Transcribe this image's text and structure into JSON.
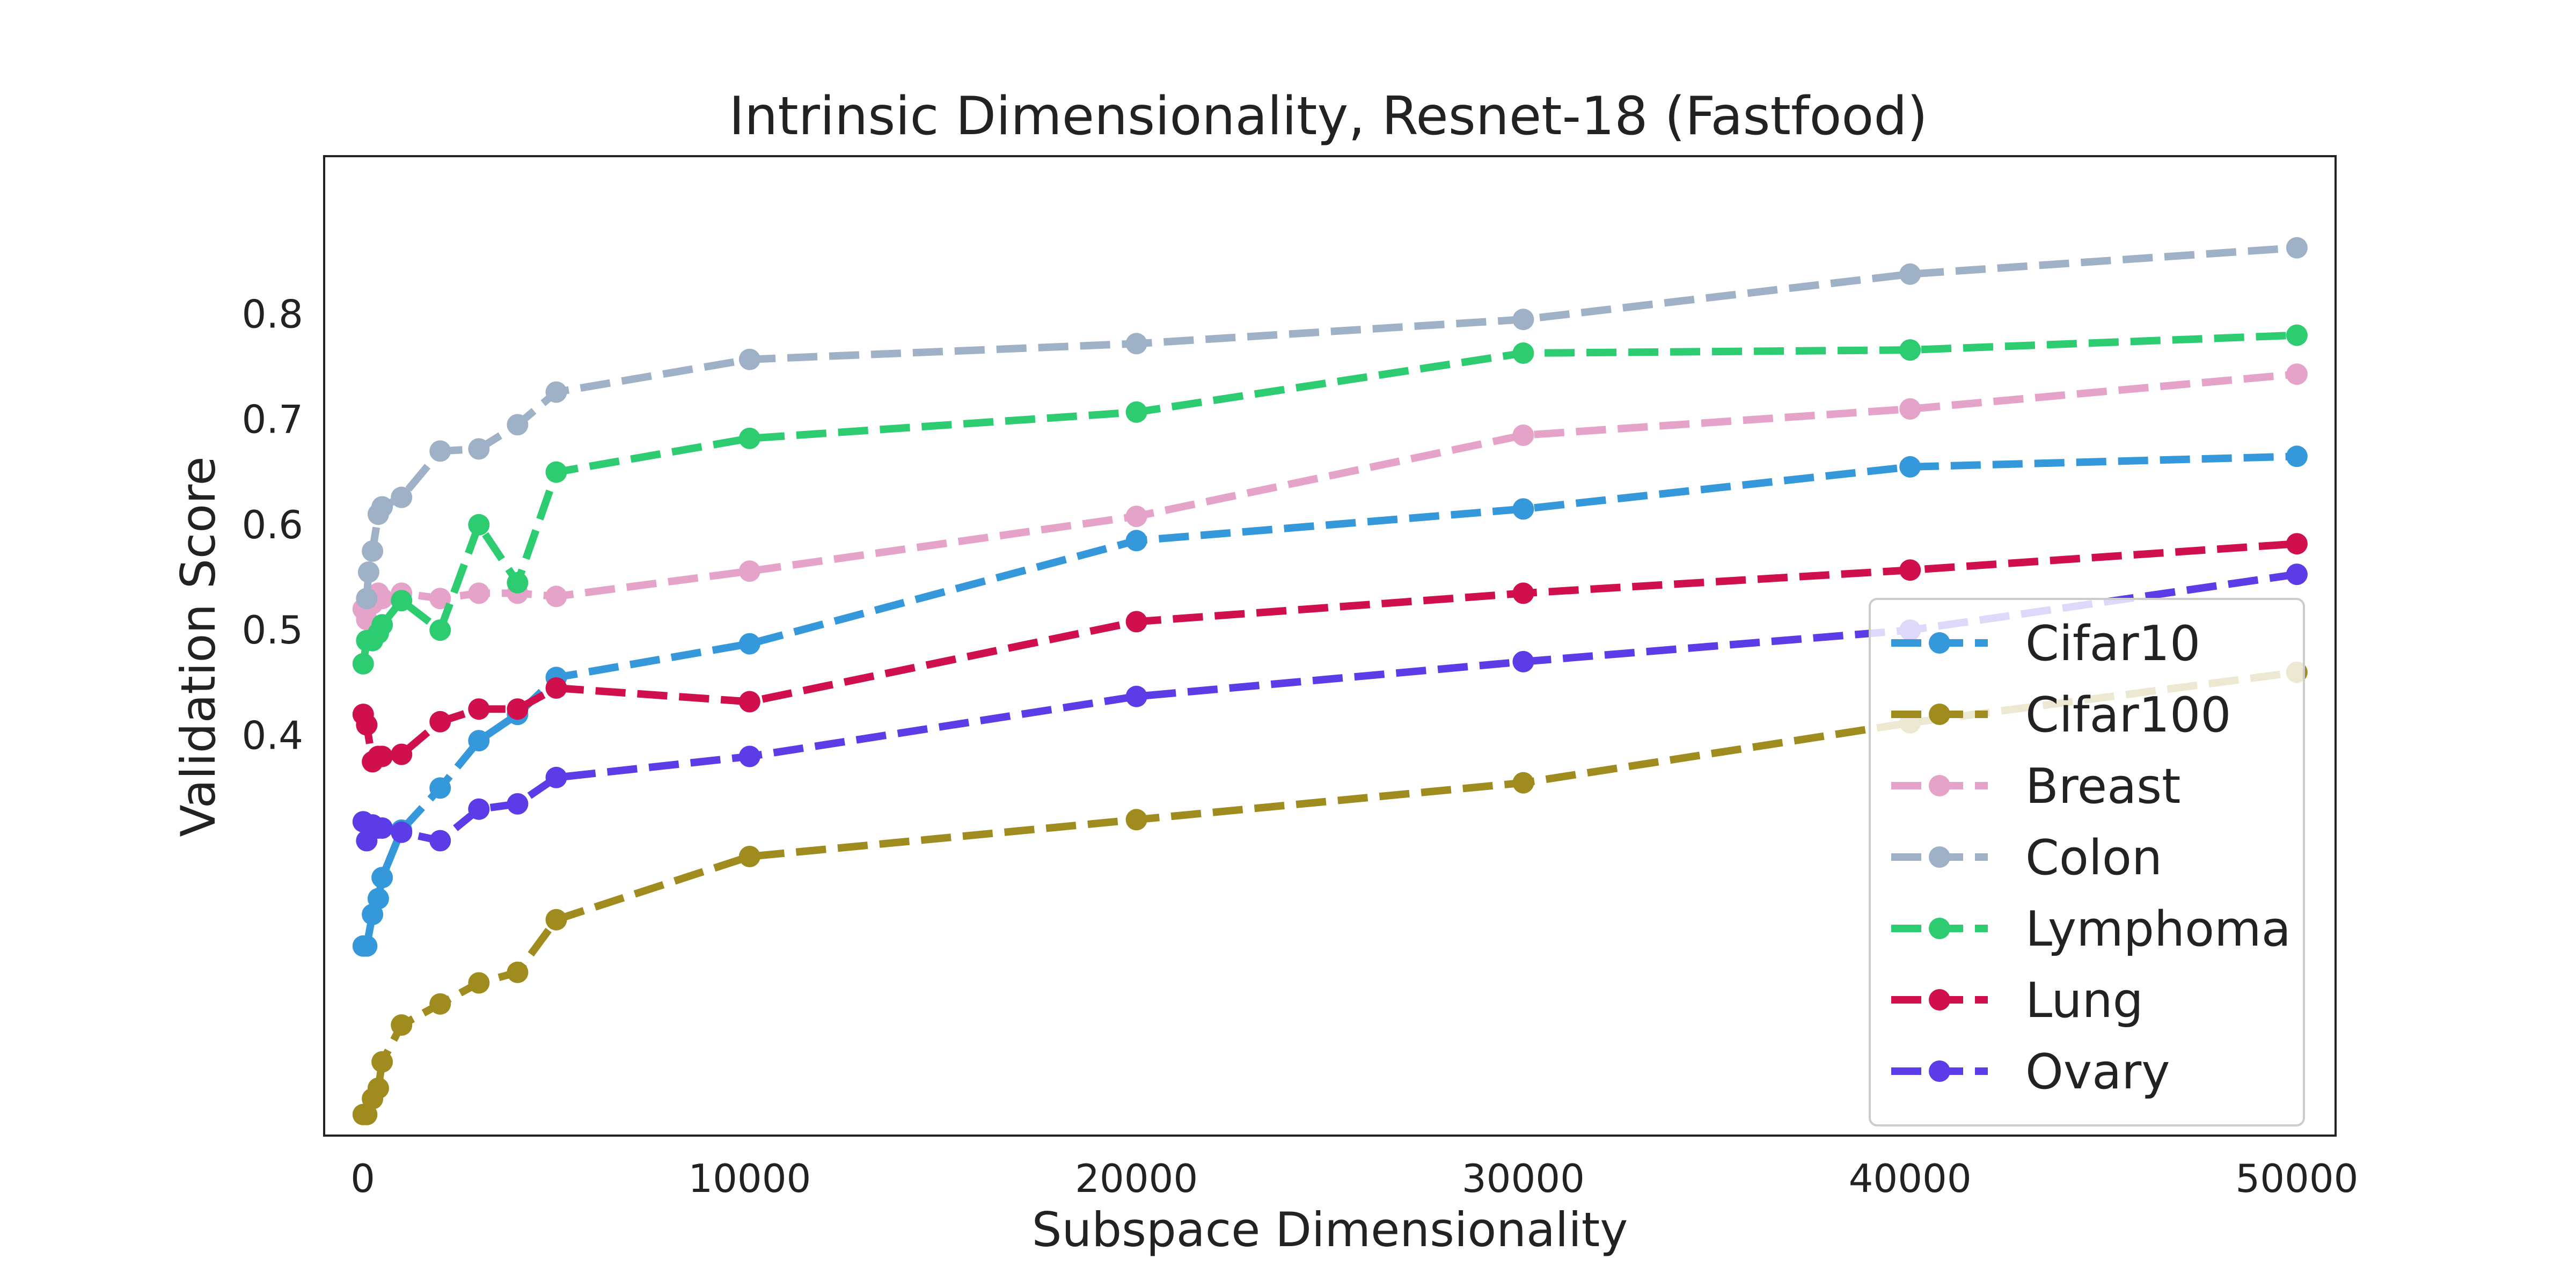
{
  "chart_data": {
    "type": "line",
    "title": "Intrinsic Dimensionality, Resnet-18 (Fastfood)",
    "xlabel": "Subspace Dimensionality",
    "ylabel": "Validation Score",
    "xlim": [
      -1000,
      51000
    ],
    "ylim": [
      0.02,
      0.95
    ],
    "xticks": [
      0,
      10000,
      20000,
      30000,
      40000,
      50000
    ],
    "yticks": [
      0.4,
      0.5,
      0.6,
      0.7,
      0.8
    ],
    "grid": false,
    "legend_position": "lower-right",
    "line_style": "dashed",
    "series": [
      {
        "name": "Cifar10",
        "color": "#3498db",
        "points": [
          [
            10,
            0.2
          ],
          [
            100,
            0.2
          ],
          [
            250,
            0.23
          ],
          [
            400,
            0.245
          ],
          [
            500,
            0.265
          ],
          [
            1000,
            0.31
          ],
          [
            2000,
            0.35
          ],
          [
            3000,
            0.395
          ],
          [
            4000,
            0.42
          ],
          [
            5000,
            0.455
          ],
          [
            10000,
            0.487
          ],
          [
            20000,
            0.585
          ],
          [
            30000,
            0.615
          ],
          [
            40000,
            0.655
          ],
          [
            50000,
            0.665
          ]
        ]
      },
      {
        "name": "Cifar100",
        "color": "#a08b1f",
        "points": [
          [
            10,
            0.04
          ],
          [
            100,
            0.04
          ],
          [
            250,
            0.055
          ],
          [
            400,
            0.065
          ],
          [
            500,
            0.09
          ],
          [
            1000,
            0.125
          ],
          [
            2000,
            0.145
          ],
          [
            3000,
            0.165
          ],
          [
            4000,
            0.175
          ],
          [
            5000,
            0.225
          ],
          [
            10000,
            0.285
          ],
          [
            20000,
            0.32
          ],
          [
            30000,
            0.355
          ],
          [
            40000,
            0.412
          ],
          [
            50000,
            0.46
          ]
        ]
      },
      {
        "name": "Breast",
        "color": "#e5a3c9",
        "points": [
          [
            10,
            0.52
          ],
          [
            100,
            0.51
          ],
          [
            250,
            0.525
          ],
          [
            400,
            0.535
          ],
          [
            500,
            0.53
          ],
          [
            1000,
            0.535
          ],
          [
            2000,
            0.53
          ],
          [
            3000,
            0.535
          ],
          [
            4000,
            0.535
          ],
          [
            5000,
            0.532
          ],
          [
            10000,
            0.556
          ],
          [
            20000,
            0.608
          ],
          [
            30000,
            0.685
          ],
          [
            40000,
            0.71
          ],
          [
            50000,
            0.743
          ]
        ]
      },
      {
        "name": "Colon",
        "color": "#9fb1c6",
        "points": [
          [
            100,
            0.53
          ],
          [
            150,
            0.555
          ],
          [
            250,
            0.575
          ],
          [
            400,
            0.61
          ],
          [
            500,
            0.617
          ],
          [
            1000,
            0.626
          ],
          [
            2000,
            0.67
          ],
          [
            3000,
            0.672
          ],
          [
            4000,
            0.695
          ],
          [
            5000,
            0.726
          ],
          [
            10000,
            0.757
          ],
          [
            20000,
            0.772
          ],
          [
            30000,
            0.795
          ],
          [
            40000,
            0.838
          ],
          [
            50000,
            0.863
          ]
        ]
      },
      {
        "name": "Lymphoma",
        "color": "#2ecc71",
        "points": [
          [
            10,
            0.468
          ],
          [
            100,
            0.49
          ],
          [
            250,
            0.49
          ],
          [
            400,
            0.497
          ],
          [
            500,
            0.505
          ],
          [
            1000,
            0.528
          ],
          [
            2000,
            0.5
          ],
          [
            3000,
            0.6
          ],
          [
            4000,
            0.545
          ],
          [
            5000,
            0.65
          ],
          [
            10000,
            0.682
          ],
          [
            20000,
            0.707
          ],
          [
            30000,
            0.763
          ],
          [
            40000,
            0.766
          ],
          [
            50000,
            0.78
          ]
        ]
      },
      {
        "name": "Lung",
        "color": "#d0104c",
        "points": [
          [
            10,
            0.42
          ],
          [
            100,
            0.41
          ],
          [
            250,
            0.375
          ],
          [
            400,
            0.38
          ],
          [
            500,
            0.38
          ],
          [
            1000,
            0.382
          ],
          [
            2000,
            0.413
          ],
          [
            3000,
            0.425
          ],
          [
            4000,
            0.425
          ],
          [
            5000,
            0.445
          ],
          [
            10000,
            0.432
          ],
          [
            20000,
            0.508
          ],
          [
            30000,
            0.535
          ],
          [
            40000,
            0.557
          ],
          [
            50000,
            0.582
          ]
        ]
      },
      {
        "name": "Ovary",
        "color": "#5b3ce6",
        "points": [
          [
            10,
            0.318
          ],
          [
            100,
            0.3
          ],
          [
            250,
            0.315
          ],
          [
            400,
            0.312
          ],
          [
            500,
            0.312
          ],
          [
            1000,
            0.308
          ],
          [
            2000,
            0.3
          ],
          [
            3000,
            0.33
          ],
          [
            4000,
            0.335
          ],
          [
            5000,
            0.36
          ],
          [
            10000,
            0.38
          ],
          [
            20000,
            0.437
          ],
          [
            30000,
            0.47
          ],
          [
            40000,
            0.5
          ],
          [
            50000,
            0.553
          ]
        ]
      }
    ]
  }
}
